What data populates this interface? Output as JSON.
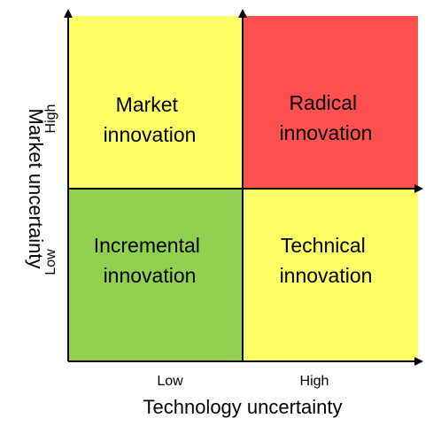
{
  "colors": {
    "market_quadrant": "#FFFF66",
    "radical_quadrant": "#FF5050",
    "incremental_quadrant": "#92D050",
    "technical_quadrant": "#FFFF66",
    "axis": "#000000"
  },
  "quadrants": {
    "top_left": {
      "line1": "Market",
      "line2": "innovation"
    },
    "top_right": {
      "line1": "Radical",
      "line2": "innovation"
    },
    "bottom_left": {
      "line1": "Incremental",
      "line2": "innovation"
    },
    "bottom_right": {
      "line1": "Technical",
      "line2": "innovation"
    }
  },
  "x_axis": {
    "title": "Technology uncertainty",
    "low_label": "Low",
    "high_label": "High"
  },
  "y_axis": {
    "title": "Market uncertainty",
    "low_label": "Low",
    "high_label": "High"
  }
}
